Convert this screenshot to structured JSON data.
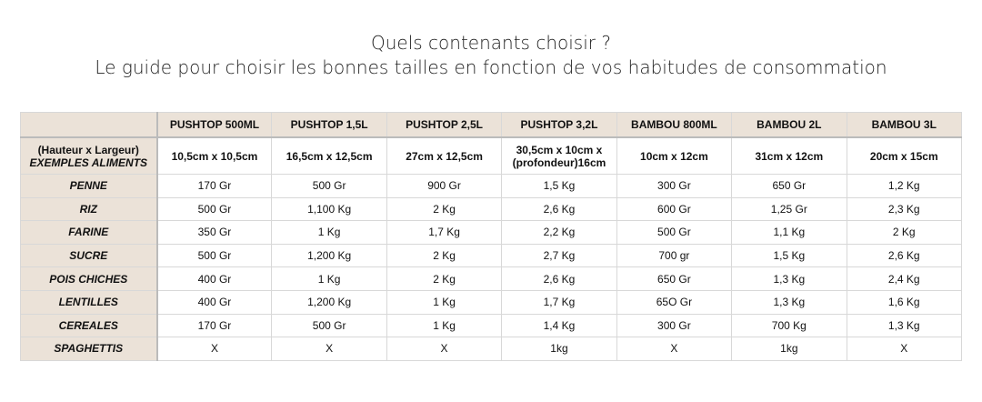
{
  "title": {
    "line1": "Quels contenants choisir ?",
    "line2": "Le guide pour choisir les bonnes tailles en fonction de vos habitudes de consommation"
  },
  "table": {
    "columns": [
      "PUSHTOP 500ML",
      "PUSHTOP 1,5L",
      "PUSHTOP 2,5L",
      "PUSHTOP 3,2L",
      "BAMBOU 800ML",
      "BAMBOU 2L",
      "BAMBOU 3L"
    ],
    "dims_label_1": "(Hauteur x Largeur)",
    "dims_label_2": "EXEMPLES ALIMENTS",
    "dims": [
      "10,5cm x 10,5cm",
      "16,5cm x 12,5cm",
      "27cm x 12,5cm",
      "30,5cm x 10cm x (profondeur)16cm",
      "10cm x 12cm",
      "31cm x 12cm",
      "20cm x 15cm"
    ],
    "rows": [
      {
        "label": "PENNE",
        "values": [
          "170 Gr",
          "500 Gr",
          "900 Gr",
          "1,5 Kg",
          "300 Gr",
          "650 Gr",
          "1,2 Kg"
        ]
      },
      {
        "label": "RIZ",
        "values": [
          "500 Gr",
          "1,100 Kg",
          "2 Kg",
          "2,6 Kg",
          "600 Gr",
          "1,25 Gr",
          "2,3 Kg"
        ]
      },
      {
        "label": "FARINE",
        "values": [
          "350 Gr",
          "1 Kg",
          "1,7 Kg",
          "2,2 Kg",
          "500 Gr",
          "1,1 Kg",
          "2 Kg"
        ]
      },
      {
        "label": "SUCRE",
        "values": [
          "500 Gr",
          "1,200 Kg",
          "2 Kg",
          "2,7 Kg",
          "700 gr",
          "1,5 Kg",
          "2,6 Kg"
        ]
      },
      {
        "label": "POIS CHICHES",
        "values": [
          "400 Gr",
          "1 Kg",
          "2 Kg",
          "2,6 Kg",
          "650 Gr",
          "1,3 Kg",
          "2,4 Kg"
        ]
      },
      {
        "label": "LENTILLES",
        "values": [
          "400 Gr",
          "1,200 Kg",
          "1 Kg",
          "1,7 Kg",
          "65O Gr",
          "1,3 Kg",
          "1,6 Kg"
        ]
      },
      {
        "label": "CEREALES",
        "values": [
          "170 Gr",
          "500 Gr",
          "1 Kg",
          "1,4 Kg",
          "300 Gr",
          "700 Kg",
          "1,3 Kg"
        ]
      },
      {
        "label": "SPAGHETTIS",
        "values": [
          "X",
          "X",
          "X",
          "1kg",
          "X",
          "1kg",
          "X"
        ]
      }
    ]
  }
}
